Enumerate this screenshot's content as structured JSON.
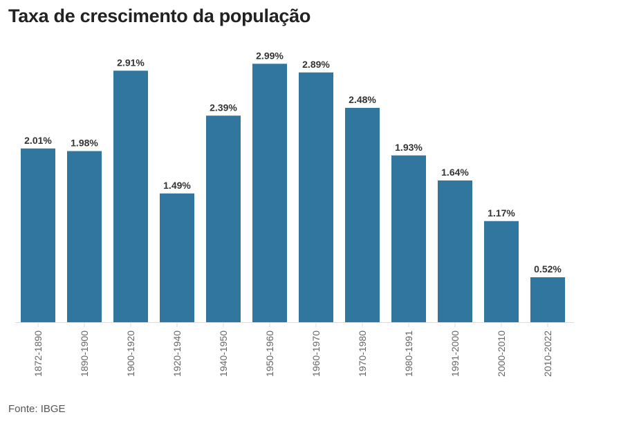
{
  "chart_data": {
    "type": "bar",
    "title": "Taxa de crescimento da população",
    "source": "Fonte: IBGE",
    "categories": [
      "1872-1890",
      "1890-1900",
      "1900-1920",
      "1920-1940",
      "1940-1950",
      "1950-1960",
      "1960-1970",
      "1970-1980",
      "1980-1991",
      "1991-2000",
      "2000-2010",
      "2010-2022"
    ],
    "values": [
      2.01,
      1.98,
      2.91,
      1.49,
      2.39,
      2.99,
      2.89,
      2.48,
      1.93,
      1.64,
      1.17,
      0.52
    ],
    "value_labels": [
      "2.01%",
      "1.98%",
      "2.91%",
      "1.49%",
      "2.39%",
      "2.99%",
      "2.89%",
      "2.48%",
      "1.93%",
      "1.64%",
      "1.17%",
      "0.52%"
    ],
    "xlabel": "",
    "ylabel": "",
    "ylim": [
      0,
      3
    ],
    "grid": false,
    "bar_color": "#31769f"
  }
}
